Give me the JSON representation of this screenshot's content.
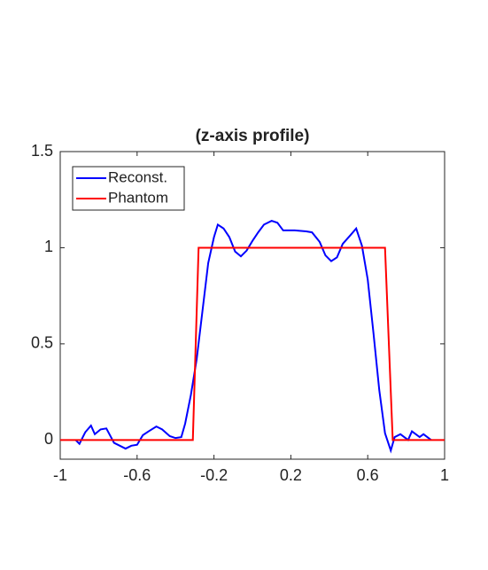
{
  "chart_data": {
    "type": "line",
    "title": "(z-axis profile)",
    "series": [
      {
        "name": "Reconst.",
        "color": "#0000ff",
        "x": [
          -0.92,
          -0.9,
          -0.87,
          -0.84,
          -0.82,
          -0.79,
          -0.76,
          -0.72,
          -0.69,
          -0.66,
          -0.63,
          -0.6,
          -0.57,
          -0.54,
          -0.5,
          -0.47,
          -0.43,
          -0.4,
          -0.37,
          -0.35,
          -0.32,
          -0.29,
          -0.26,
          -0.23,
          -0.2,
          -0.18,
          -0.15,
          -0.12,
          -0.09,
          -0.06,
          -0.03,
          0,
          0.03,
          0.06,
          0.1,
          0.13,
          0.16,
          0.22,
          0.28,
          0.31,
          0.35,
          0.38,
          0.41,
          0.44,
          0.47,
          0.51,
          0.54,
          0.57,
          0.6,
          0.63,
          0.66,
          0.69,
          0.72,
          0.74,
          0.77,
          0.81,
          0.83,
          0.87,
          0.89,
          0.93
        ],
        "values": [
          0,
          -0.02,
          0.04,
          0.075,
          0.03,
          0.055,
          0.06,
          -0.015,
          -0.03,
          -0.045,
          -0.03,
          -0.025,
          0.025,
          0.045,
          0.07,
          0.055,
          0.02,
          0.01,
          0.015,
          0.085,
          0.235,
          0.42,
          0.67,
          0.92,
          1.055,
          1.12,
          1.1,
          1.055,
          0.98,
          0.955,
          0.985,
          1.035,
          1.08,
          1.12,
          1.14,
          1.13,
          1.09,
          1.09,
          1.085,
          1.08,
          1.03,
          0.96,
          0.93,
          0.95,
          1.02,
          1.065,
          1.1,
          1.01,
          0.835,
          0.555,
          0.26,
          0.035,
          -0.055,
          0.015,
          0.03,
          0,
          0.045,
          0.015,
          0.03,
          0
        ]
      },
      {
        "name": "Phantom",
        "color": "#ff0000",
        "x": [
          -1,
          -0.31,
          -0.28,
          0.69,
          0.73,
          1
        ],
        "values": [
          0,
          0,
          1,
          1,
          0,
          0
        ]
      }
    ],
    "xlim": [
      -1,
      1
    ],
    "xticks": [
      -1,
      -0.6,
      -0.2,
      0.2,
      0.6,
      1
    ],
    "ylim": [
      -0.1,
      1.5
    ],
    "yticks": [
      0,
      0.5,
      1,
      1.5
    ],
    "grid": false,
    "legend": "northwest"
  }
}
